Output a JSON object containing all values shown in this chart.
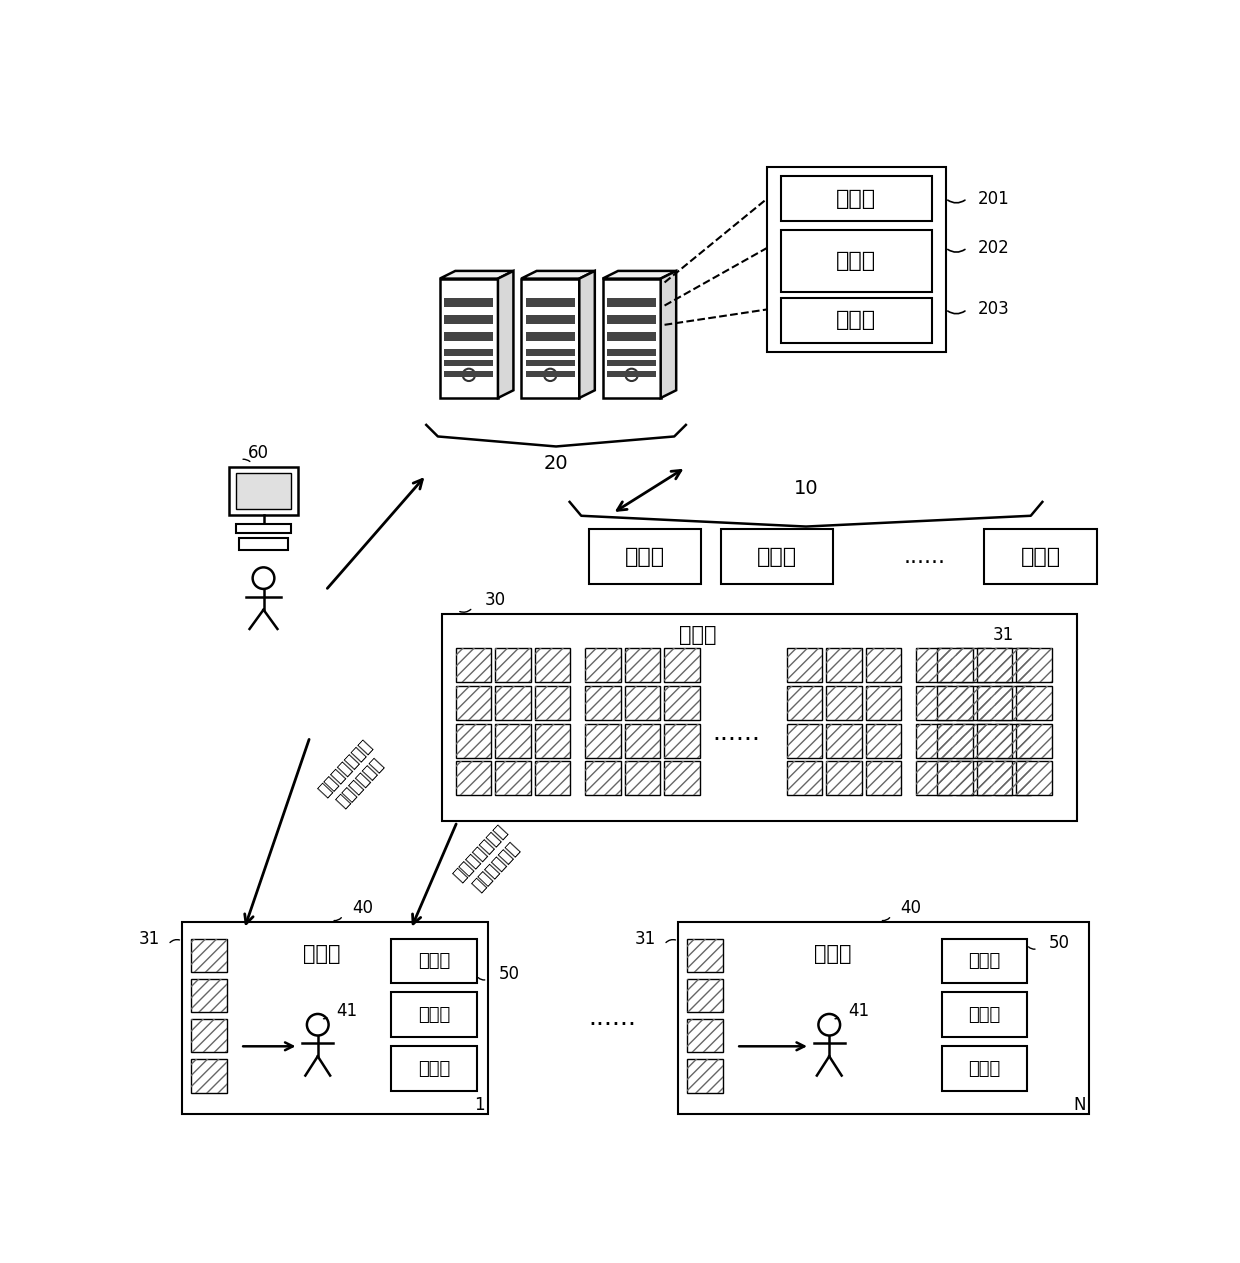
{
  "bg_color": "#ffffff",
  "labels": {
    "processor": "处理器",
    "memory": "存储器",
    "order_pool": "订单池",
    "robot": "机器人",
    "ellipsis_h": "......",
    "shelf_area": "货架区",
    "picking_station": "拣选站",
    "turnover_box": "周转筱",
    "robot_carry_to": "机器人搞运待拣\n货货架的方向",
    "robot_carry_back": "机器人搞运拣完\n货货架的方向",
    "n201": "201",
    "n202": "202",
    "n203": "203",
    "n30": "30",
    "n31": "31",
    "n40": "40",
    "n41": "41",
    "n50": "50",
    "n60": "60",
    "n20": "20",
    "n10": "10",
    "n1": "1",
    "nN": "N"
  }
}
